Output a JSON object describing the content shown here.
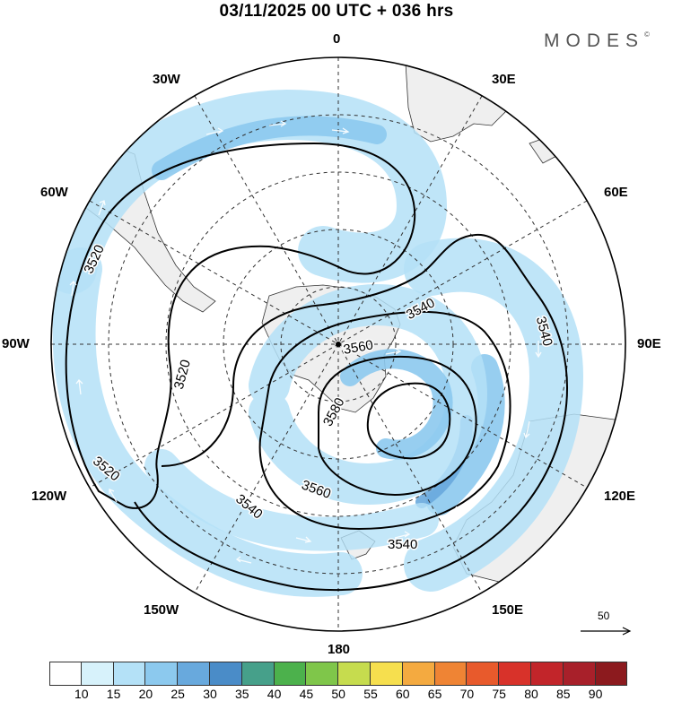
{
  "header": {
    "title": "03/11/2025  00 UTC  + 036 hrs",
    "brand": "MODES",
    "brand_mark": "©"
  },
  "map": {
    "projection": "south-polar-stereographic",
    "longitude_labels": {
      "lon_0": "0",
      "lon_30e": "30E",
      "lon_60e": "60E",
      "lon_90e": "90E",
      "lon_120e": "120E",
      "lon_150e": "150E",
      "lon_180": "180",
      "lon_150w": "150W",
      "lon_120w": "120W",
      "lon_90w": "90W",
      "lon_60w": "60W",
      "lon_30w": "30W"
    },
    "contour_labels": {
      "c3520_a": "3520",
      "c3520_b": "3520",
      "c3520_c": "3520",
      "c3540_a": "3540",
      "c3540_b": "3540",
      "c3540_c": "3540",
      "c3540_d": "3540",
      "c3560_a": "3560",
      "c3560_b": "3560",
      "c3580_a": "3580"
    },
    "contour_levels": [
      3520,
      3540,
      3560,
      3580
    ],
    "reference_vector": "50",
    "land_color": "#efefef",
    "contour_color": "#000000"
  },
  "colorbar": {
    "labels": [
      "10",
      "15",
      "20",
      "25",
      "30",
      "35",
      "40",
      "45",
      "50",
      "55",
      "60",
      "65",
      "70",
      "75",
      "80",
      "85",
      "90"
    ],
    "colors": [
      "#ffffff",
      "#d7f2fb",
      "#b4e1f7",
      "#8cc9ee",
      "#68a9dd",
      "#4a8cc8",
      "#46a08a",
      "#4cb14c",
      "#7fc64a",
      "#c6dc4e",
      "#f6df4e",
      "#f4aa40",
      "#ef8434",
      "#e85a2c",
      "#d8322a",
      "#c2252a",
      "#a8202a",
      "#8c1a1e"
    ]
  }
}
